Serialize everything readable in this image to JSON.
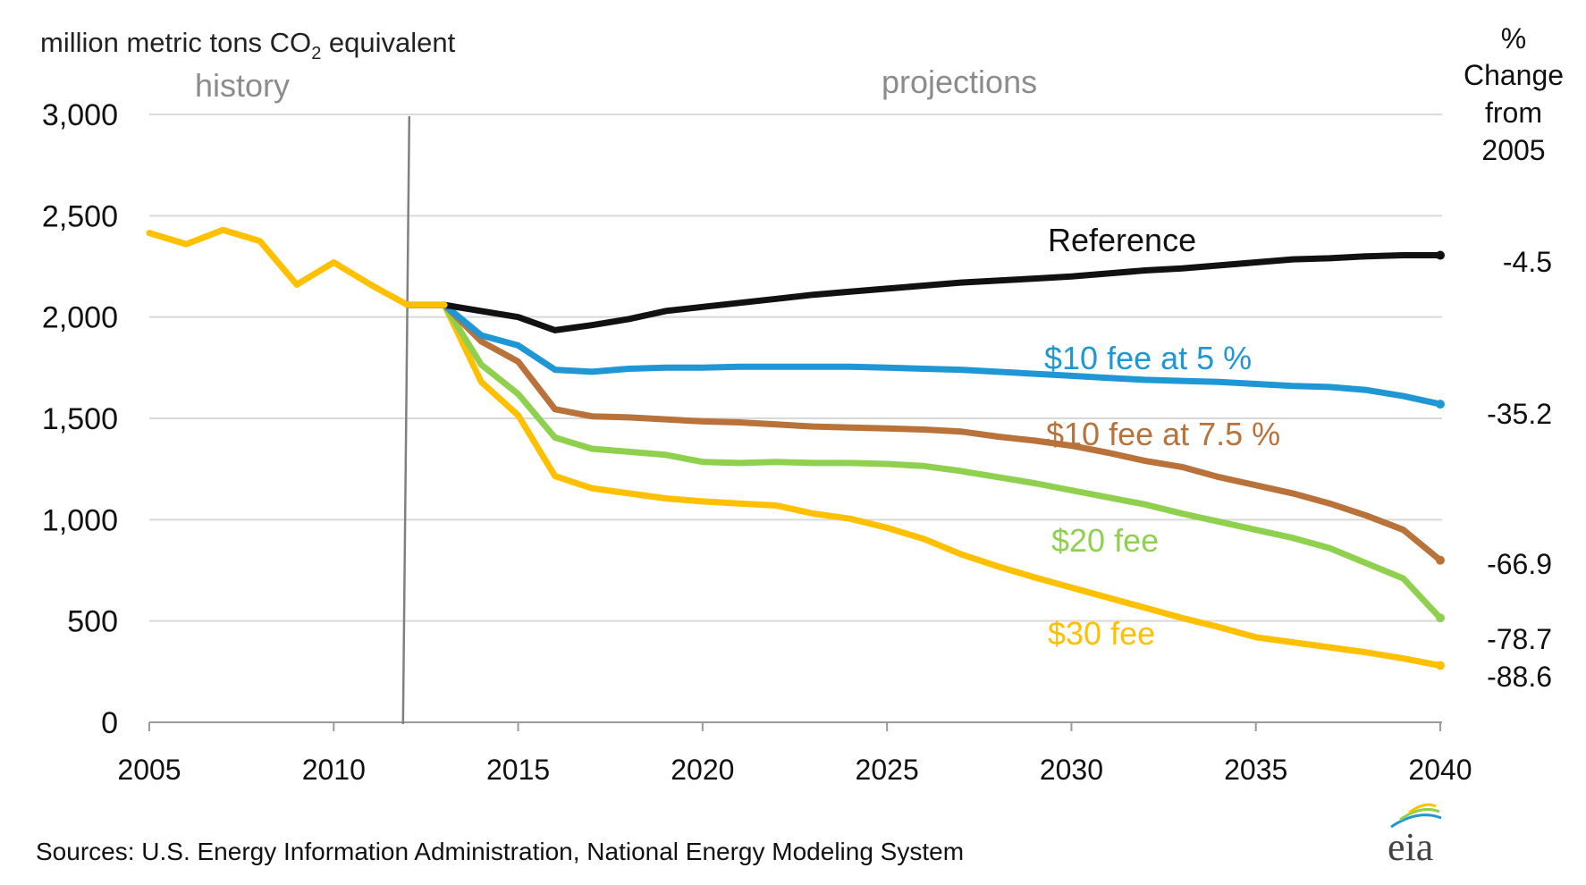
{
  "colors": {
    "reference": "#111111",
    "fee10_5": "#1f97d5",
    "fee10_75": "#b8723a",
    "fee20": "#8fd14f",
    "fee30": "#ffc000",
    "grid": "#d9d9d9",
    "divider": "#808080",
    "region_text": "#8c8c8c"
  },
  "header": {
    "ylabel_prefix": "million metric tons CO",
    "ylabel_sub": "2",
    "ylabel_suffix": " equivalent",
    "history": "history",
    "projections": "projections",
    "pct_header": [
      "%",
      "Change",
      "from",
      "2005"
    ]
  },
  "footer": {
    "source": "Sources: U.S. Energy Information Administration, National Energy Modeling System",
    "logo": "eia"
  },
  "chart_data": {
    "type": "line",
    "ylim": [
      0,
      3000
    ],
    "xlim": [
      2005,
      2040
    ],
    "yticks": [
      0,
      500,
      1000,
      1500,
      2000,
      2500,
      3000
    ],
    "ytick_labels": [
      "0",
      "500",
      "1,000",
      "1,500",
      "2,000",
      "2,500",
      "3,000"
    ],
    "xticks": [
      2005,
      2010,
      2015,
      2020,
      2025,
      2030,
      2035,
      2040
    ],
    "xtick_labels": [
      "2005",
      "2010",
      "2015",
      "2020",
      "2025",
      "2030",
      "2035",
      "2040"
    ],
    "grid": true,
    "history_end": 2012,
    "x": [
      2005,
      2006,
      2007,
      2008,
      2009,
      2010,
      2011,
      2012,
      2013,
      2014,
      2015,
      2016,
      2017,
      2018,
      2019,
      2020,
      2021,
      2022,
      2023,
      2024,
      2025,
      2026,
      2027,
      2028,
      2029,
      2030,
      2031,
      2032,
      2033,
      2034,
      2035,
      2036,
      2037,
      2038,
      2039,
      2040
    ],
    "history_series": {
      "x": [
        2005,
        2006,
        2007,
        2008,
        2009,
        2010,
        2011,
        2012,
        2013
      ],
      "values": [
        2415,
        2360,
        2430,
        2375,
        2160,
        2270,
        2160,
        2060,
        2060
      ]
    },
    "series": [
      {
        "name": "Reference",
        "key": "reference",
        "pct_change": "-4.5",
        "values": [
          null,
          null,
          null,
          null,
          null,
          null,
          null,
          2060,
          2060,
          2030,
          2000,
          1935,
          1960,
          1990,
          2030,
          2050,
          2070,
          2090,
          2110,
          2125,
          2140,
          2155,
          2170,
          2180,
          2190,
          2200,
          2215,
          2230,
          2240,
          2255,
          2270,
          2285,
          2290,
          2300,
          2305,
          2305
        ]
      },
      {
        "name": "$10 fee at 5 %",
        "key": "fee10_5",
        "pct_change": "-35.2",
        "values": [
          null,
          null,
          null,
          null,
          null,
          null,
          null,
          2060,
          2060,
          1910,
          1860,
          1740,
          1730,
          1745,
          1750,
          1750,
          1755,
          1755,
          1755,
          1755,
          1750,
          1745,
          1740,
          1730,
          1720,
          1710,
          1700,
          1690,
          1685,
          1680,
          1670,
          1660,
          1655,
          1640,
          1610,
          1570
        ]
      },
      {
        "name": "$10 fee at 7.5 %",
        "key": "fee10_75",
        "pct_change": "-66.9",
        "values": [
          null,
          null,
          null,
          null,
          null,
          null,
          null,
          2060,
          2060,
          1880,
          1780,
          1545,
          1510,
          1505,
          1495,
          1485,
          1480,
          1470,
          1460,
          1455,
          1450,
          1445,
          1435,
          1410,
          1390,
          1365,
          1330,
          1290,
          1260,
          1210,
          1170,
          1130,
          1080,
          1020,
          950,
          800
        ]
      },
      {
        "name": "$20 fee",
        "key": "fee20",
        "pct_change": "-78.7",
        "values": [
          null,
          null,
          null,
          null,
          null,
          null,
          null,
          2060,
          2060,
          1765,
          1620,
          1405,
          1350,
          1335,
          1320,
          1285,
          1280,
          1285,
          1280,
          1280,
          1275,
          1265,
          1240,
          1210,
          1180,
          1145,
          1110,
          1075,
          1030,
          990,
          950,
          910,
          860,
          785,
          710,
          515
        ]
      },
      {
        "name": "$30 fee",
        "key": "fee30",
        "pct_change": "-88.6",
        "values": [
          null,
          null,
          null,
          null,
          null,
          null,
          null,
          2060,
          2060,
          1680,
          1515,
          1215,
          1155,
          1130,
          1105,
          1090,
          1080,
          1070,
          1030,
          1005,
          960,
          905,
          830,
          770,
          715,
          665,
          615,
          565,
          515,
          470,
          420,
          395,
          370,
          345,
          315,
          280
        ]
      }
    ]
  }
}
